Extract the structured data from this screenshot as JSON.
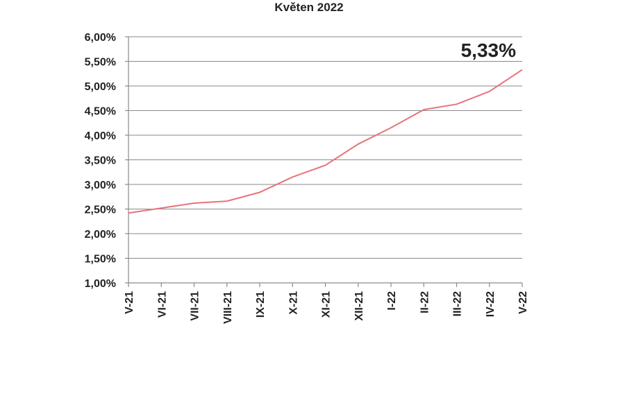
{
  "chart_data": {
    "type": "line",
    "title": "Květen 2022",
    "xlabel": "",
    "ylabel": "",
    "categories": [
      "V-21",
      "VI-21",
      "VII-21",
      "VIII-21",
      "IX-21",
      "X-21",
      "XI-21",
      "XII-21",
      "I-22",
      "II-22",
      "III-22",
      "IV-22",
      "V-22"
    ],
    "series": [
      {
        "values": [
          2.42,
          2.52,
          2.62,
          2.66,
          2.84,
          3.15,
          3.39,
          3.82,
          4.15,
          4.52,
          4.63,
          4.89,
          5.33
        ]
      }
    ],
    "y_ticks": [
      "1,00%",
      "1,50%",
      "2,00%",
      "2,50%",
      "3,00%",
      "3,50%",
      "4,00%",
      "4,50%",
      "5,00%",
      "5,50%",
      "6,00%"
    ],
    "ylim": [
      1.0,
      6.0
    ],
    "y_tick_step": 0.5,
    "grid": true,
    "annotation": "5,33%",
    "line_color": "#e8727a"
  }
}
